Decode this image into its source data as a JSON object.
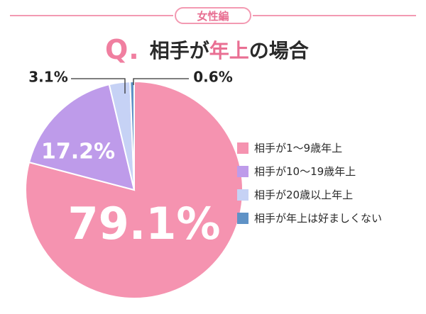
{
  "header": {
    "tag": "女性編",
    "q_mark": "Q.",
    "title_before": "相手が",
    "title_highlight": "年上",
    "title_after": "の場合"
  },
  "chart_data": {
    "type": "pie",
    "slices": [
      {
        "label": "相手が1～9歳年上",
        "value": 79.1,
        "value_label": "79.1%",
        "color": "#f593b0"
      },
      {
        "label": "相手が10～19歳年上",
        "value": 17.2,
        "value_label": "17.2%",
        "color": "#be9bea"
      },
      {
        "label": "相手が20歳以上年上",
        "value": 3.1,
        "value_label": "3.1%",
        "color": "#c6d2f5"
      },
      {
        "label": "相手が年上は好ましくない",
        "value": 0.6,
        "value_label": "0.6%",
        "color": "#5f92c6"
      }
    ],
    "legend_position": "right"
  }
}
